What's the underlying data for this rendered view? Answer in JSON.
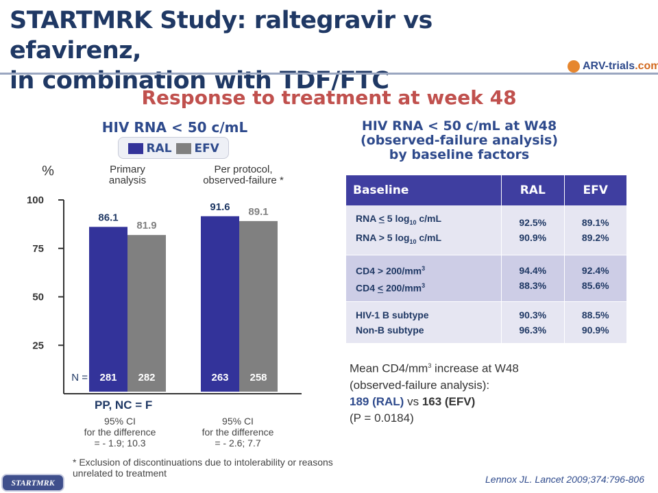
{
  "header": {
    "title_line1": "STARTMRK Study: raltegravir vs efavirenz,",
    "title_line2": "in combination with TDF/FTC",
    "logo_text_main": "ARV-trials",
    "logo_text_accent": ".com",
    "subtitle": "Response to treatment at week 48"
  },
  "chart_data": {
    "type": "bar",
    "title": "HIV RNA < 50 c/mL",
    "ylabel": "%",
    "ylim": [
      0,
      100
    ],
    "yticks": [
      25,
      50,
      75,
      100
    ],
    "grid": false,
    "legend_position": "top",
    "groups": [
      {
        "label_line1": "Primary",
        "label_line2": "analysis",
        "n": [
          281,
          282
        ]
      },
      {
        "label_line1": "Per protocol,",
        "label_line2": "observed-failure *",
        "n": [
          263,
          258
        ]
      }
    ],
    "series": [
      {
        "name": "RAL",
        "color": "#33339a",
        "values": [
          86.1,
          91.6
        ]
      },
      {
        "name": "EFV",
        "color": "#808080",
        "values": [
          81.9,
          89.1
        ]
      }
    ],
    "n_prefix": "N =",
    "xlabel": "PP, NC = F"
  },
  "ci_left": {
    "line1": "95% CI",
    "line2": "for the difference",
    "line3": "= - 1.9; 10.3"
  },
  "ci_right": {
    "line1": "95% CI",
    "line2": "for the difference",
    "line3": "= - 2.6; 7.7"
  },
  "footnote": "* Exclusion of discontinuations due to intolerability or reasons unrelated to treatment",
  "table": {
    "title_line1": "HIV RNA < 50 c/mL at W48",
    "title_line2": "(observed-failure analysis)",
    "title_line3": "by baseline factors",
    "headers": [
      "Baseline",
      "RAL",
      "EFV"
    ],
    "rows": [
      {
        "a1": "RNA",
        "a2": "<",
        "a3": " 5 log",
        "a4": "10",
        "a5": " c/mL",
        "b1": "RNA > 5 log",
        "b2": "10",
        "b3": " c/mL",
        "ral": [
          "92.5%",
          "90.9%"
        ],
        "efv": [
          "89.1%",
          "89.2%"
        ]
      },
      {
        "a1": "CD4 > 200/mm",
        "a2": "3",
        "b1": "CD4 ",
        "b2": "<",
        "b3": " 200/mm",
        "b4": "3",
        "ral": [
          "94.4%",
          "88.3%"
        ],
        "efv": [
          "92.4%",
          "85.6%"
        ]
      },
      {
        "a1": "HIV-1 B subtype",
        "b1": "Non-B subtype",
        "ral": [
          "90.3%",
          "96.3%"
        ],
        "efv": [
          "88.5%",
          "90.9%"
        ]
      }
    ]
  },
  "cd4_note": {
    "line1_a": "Mean CD4/mm",
    "line1_sup": "3",
    "line1_b": " increase at W48",
    "line2": "(observed-failure analysis):",
    "ral_value": "189 (RAL)",
    "vs": " vs ",
    "efv_value": "163 (EFV)",
    "pvalue": "(P = 0.0184)"
  },
  "citation": "Lennox JL. Lancet 2009;374:796-806",
  "badge": "STARTMRK"
}
